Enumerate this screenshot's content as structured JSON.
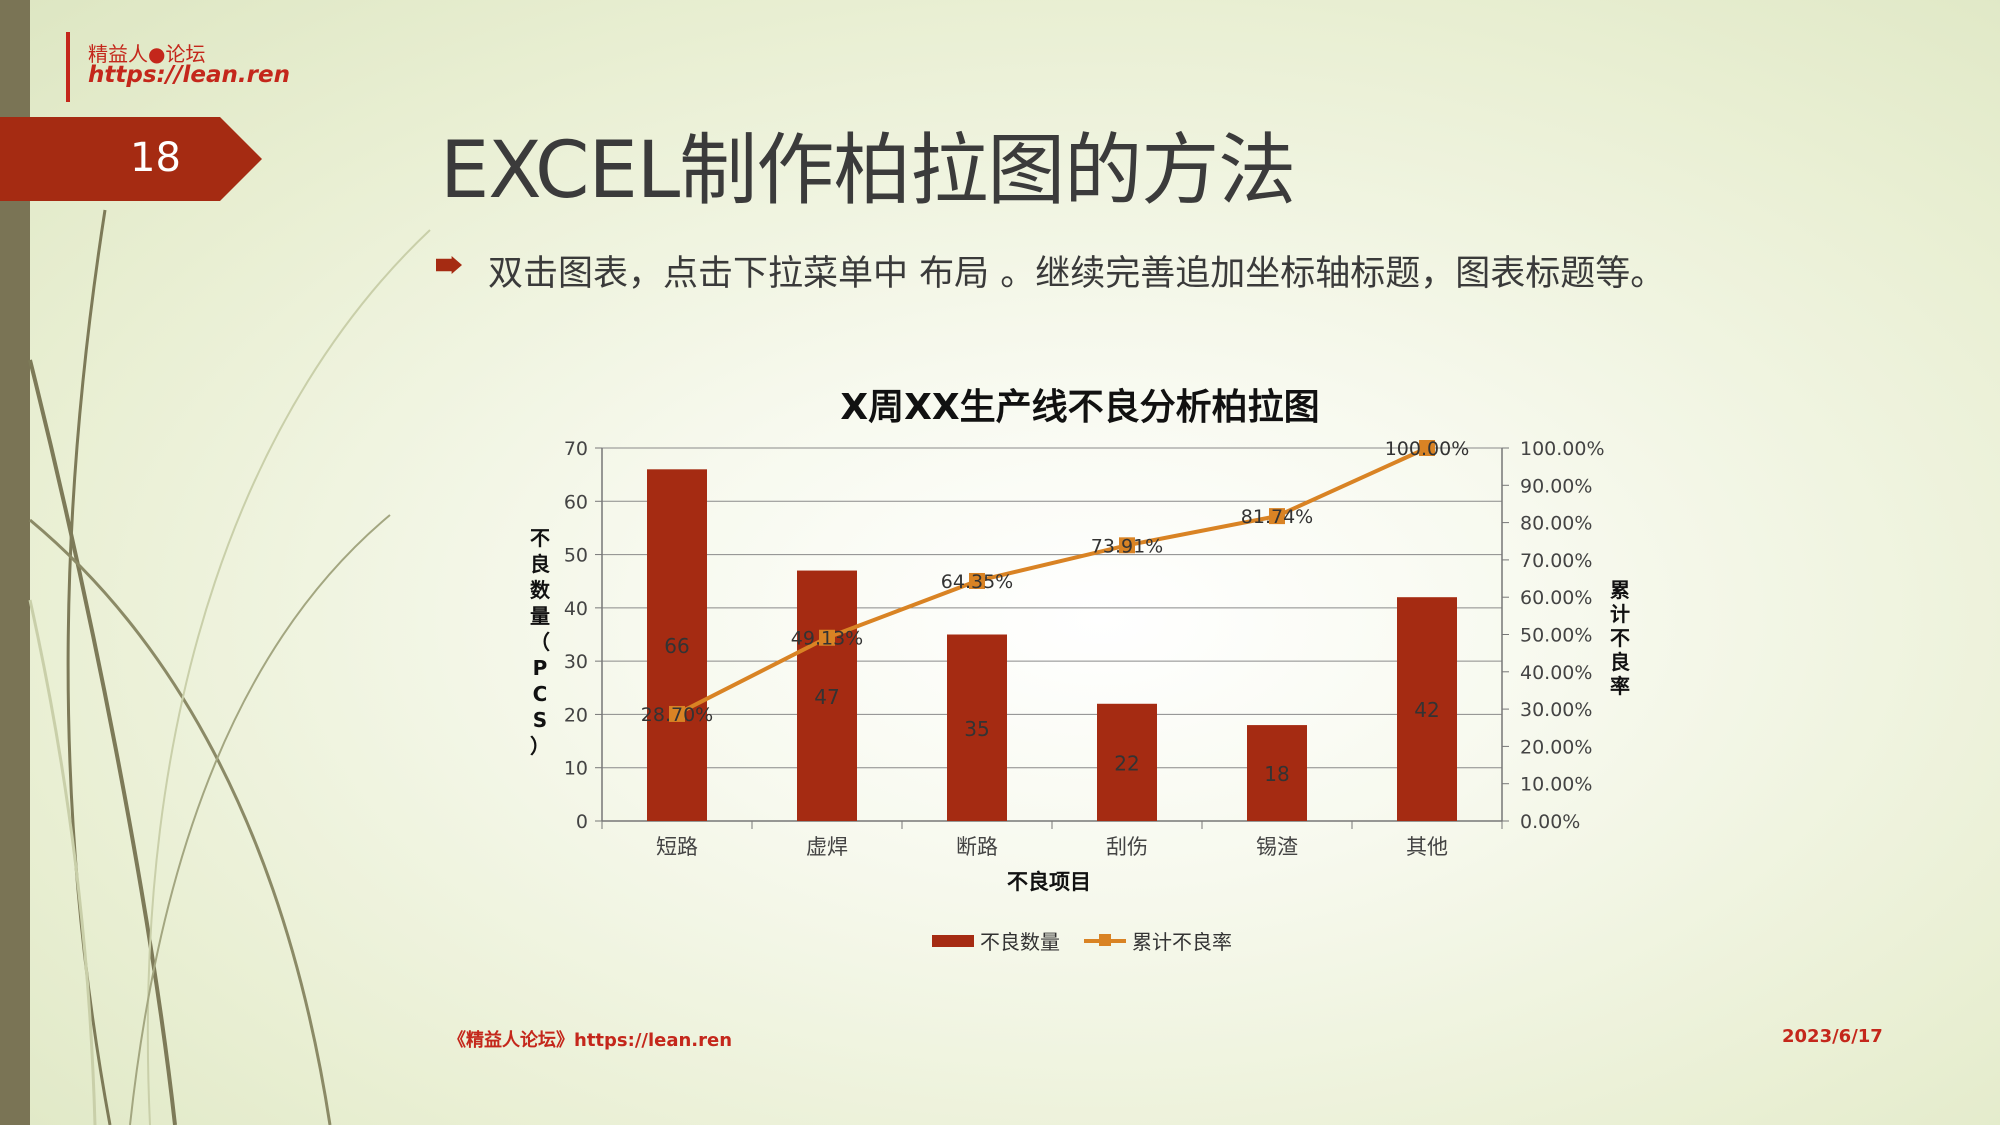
{
  "brand": {
    "name": "精益人●论坛",
    "url": "https://lean.ren"
  },
  "slide_number": "18",
  "title": "EXCEL制作柏拉图的方法",
  "bullet": "双击图表，点击下拉菜单中  布局 。继续完善追加坐标轴标题，图表标题等。",
  "footer": {
    "left": "《精益人论坛》https://lean.ren",
    "right": "2023/6/17"
  },
  "colors": {
    "bar": "#a52b12",
    "line": "#d98324",
    "accent": "#c4271b"
  },
  "chart_data": {
    "type": "bar",
    "title": "X周XX生产线不良分析柏拉图",
    "categories": [
      "短路",
      "虚焊",
      "断路",
      "刮伤",
      "锡渣",
      "其他"
    ],
    "series": [
      {
        "name": "不良数量",
        "type": "bar",
        "axis": "left",
        "values": [
          66,
          47,
          35,
          22,
          18,
          42
        ],
        "labels": [
          "66",
          "47",
          "35",
          "22",
          "18",
          "42"
        ]
      },
      {
        "name": "累计不良率",
        "type": "line",
        "axis": "right",
        "values": [
          28.7,
          49.13,
          64.35,
          73.91,
          81.74,
          100.0
        ],
        "labels": [
          "28.70%",
          "49.13%",
          "64.35%",
          "73.91%",
          "81.74%",
          "100.00%"
        ]
      }
    ],
    "xlabel": "不良项目",
    "ylabel": "不良数量（PCS）",
    "y2label": "累计不良率",
    "ylim": [
      0,
      70
    ],
    "yticks": [
      "0",
      "10",
      "20",
      "30",
      "40",
      "50",
      "60",
      "70"
    ],
    "y2lim": [
      0,
      100
    ],
    "y2ticks": [
      "0.00%",
      "10.00%",
      "20.00%",
      "30.00%",
      "40.00%",
      "50.00%",
      "60.00%",
      "70.00%",
      "80.00%",
      "90.00%",
      "100.00%"
    ],
    "grid": true,
    "legend": "bottom"
  }
}
